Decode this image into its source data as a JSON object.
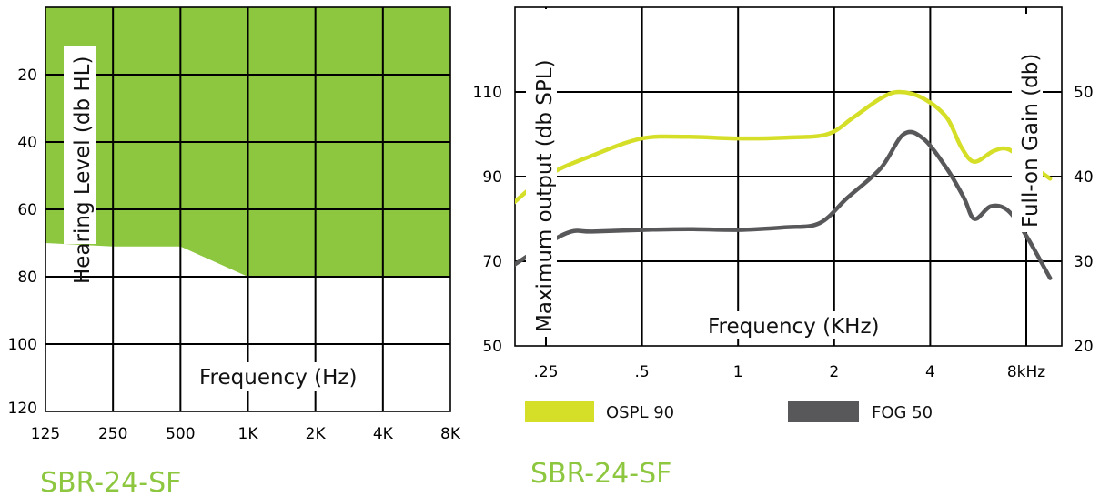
{
  "chart_data": [
    {
      "type": "area",
      "xlabel": "Frequency (Hz)",
      "ylabel": "Hearing Level (db HL)",
      "x_tick_labels": [
        "125",
        "250",
        "500",
        "1K",
        "2K",
        "4K",
        "8K"
      ],
      "y_tick_labels": [
        "20",
        "40",
        "60",
        "80",
        "100",
        "120"
      ],
      "y_ticks": [
        20,
        40,
        60,
        80,
        100,
        120
      ],
      "ylim": [
        0,
        120
      ],
      "y_inverted": true,
      "grid": true,
      "fitting_range_color": "#8dc63f",
      "fitting_range_lower_bound": {
        "x": [
          "125",
          "250",
          "500",
          "1K",
          "2K",
          "4K",
          "8K"
        ],
        "y": [
          70,
          71,
          71,
          80,
          80,
          80,
          80
        ]
      },
      "model_label": "SBR-24-SF"
    },
    {
      "type": "line",
      "xlabel": "Frequency (KHz)",
      "ylabel_left": "Maximum output  (db SPL)",
      "ylabel_right": "Full-on Gain  (db)",
      "x_tick_labels": [
        ".25",
        ".5",
        "1",
        "2",
        "4",
        "8kHz"
      ],
      "x_ticks_khz": [
        0.25,
        0.5,
        1,
        2,
        4,
        8
      ],
      "y_left_ticks": [
        50,
        70,
        90,
        110
      ],
      "y_left_tick_labels": [
        "50",
        "70",
        "90",
        "110"
      ],
      "y_right_ticks": [
        20,
        30,
        40,
        50
      ],
      "y_right_tick_labels": [
        "20",
        "30",
        "40",
        "50"
      ],
      "y_left_lim": [
        50,
        130
      ],
      "y_right_lim": [
        20,
        60
      ],
      "grid": true,
      "series": [
        {
          "name": "OSPL 90",
          "axis": "left",
          "color": "#d6df27",
          "x_khz": [
            0.18,
            0.25,
            0.35,
            0.5,
            0.7,
            1,
            1.4,
            1.9,
            2.3,
            2.8,
            3.2,
            3.8,
            4.5,
            5.0,
            5.5,
            6.3,
            7.0,
            8.0,
            9.5
          ],
          "y": [
            81,
            90,
            95,
            99,
            99.4,
            99,
            99.2,
            100,
            104,
            108.5,
            110,
            108.5,
            104,
            97,
            93.5,
            96,
            96.5,
            93.5,
            89.5
          ]
        },
        {
          "name": "FOG 50",
          "axis": "right",
          "color": "#58585a",
          "x_khz": [
            0.18,
            0.25,
            0.3,
            0.35,
            0.5,
            0.7,
            1,
            1.4,
            1.8,
            2.2,
            2.8,
            3.3,
            3.8,
            4.5,
            5.1,
            5.5,
            6.2,
            7.0,
            8.0,
            9.5
          ],
          "y": [
            28.5,
            32,
            33.5,
            33.5,
            33.7,
            33.8,
            33.7,
            34,
            34.5,
            37.5,
            41,
            45,
            44.5,
            41,
            37.5,
            35,
            36.5,
            36,
            33,
            28
          ]
        }
      ],
      "model_label": "SBR-24-SF"
    }
  ]
}
